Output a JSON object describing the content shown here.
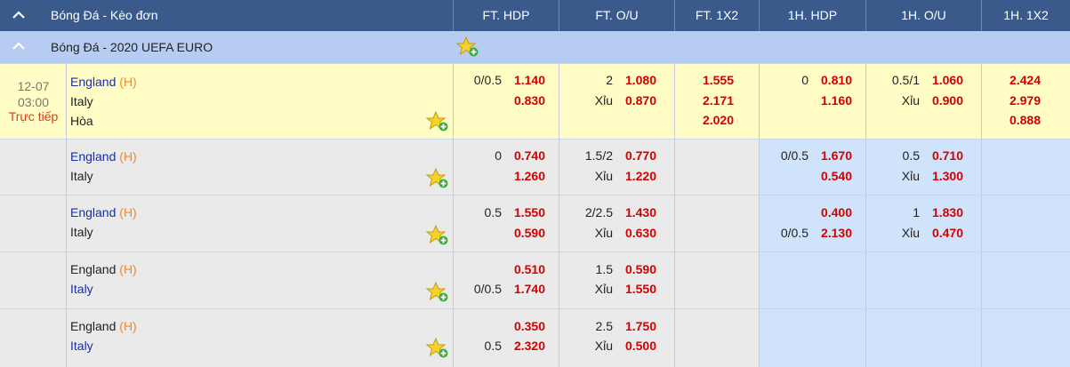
{
  "header": {
    "title": "Bóng Đá - Kèo đơn",
    "columns": [
      "FT. HDP",
      "FT. O/U",
      "FT. 1X2",
      "1H. HDP",
      "1H. O/U",
      "1H. 1X2"
    ]
  },
  "league": {
    "name": "Bóng Đá - 2020 UEFA EURO"
  },
  "match": {
    "date": "12-07",
    "time": "03:00",
    "status": "Trực tiếp"
  },
  "rows": [
    {
      "home": "England",
      "home_tag": "(H)",
      "away": "Italy",
      "draw": "Hòa",
      "ft_hdp": {
        "line_home": "0/0.5",
        "home": "1.140",
        "line_away": "",
        "away": "0.830"
      },
      "ft_ou": {
        "line": "2",
        "over": "1.080",
        "under_label": "Xỉu",
        "under": "0.870"
      },
      "ft_1x2": [
        "1.555",
        "2.171",
        "2.020"
      ],
      "h1_hdp": {
        "line_home": "0",
        "home": "0.810",
        "line_away": "",
        "away": "1.160"
      },
      "h1_ou": {
        "line": "0.5/1",
        "over": "1.060",
        "under_label": "Xỉu",
        "under": "0.900"
      },
      "h1_1x2": [
        "2.424",
        "2.979",
        "0.888"
      ]
    },
    {
      "home": "England",
      "home_tag": "(H)",
      "away": "Italy",
      "ft_hdp": {
        "line_home": "0",
        "home": "0.740",
        "line_away": "",
        "away": "1.260"
      },
      "ft_ou": {
        "line": "1.5/2",
        "over": "0.770",
        "under_label": "Xỉu",
        "under": "1.220"
      },
      "h1_hdp": {
        "line_home": "0/0.5",
        "home": "1.670",
        "line_away": "",
        "away": "0.540"
      },
      "h1_ou": {
        "line": "0.5",
        "over": "0.710",
        "under_label": "Xỉu",
        "under": "1.300"
      }
    },
    {
      "home": "England",
      "home_tag": "(H)",
      "away": "Italy",
      "ft_hdp": {
        "line_home": "0.5",
        "home": "1.550",
        "line_away": "",
        "away": "0.590"
      },
      "ft_ou": {
        "line": "2/2.5",
        "over": "1.430",
        "under_label": "Xỉu",
        "under": "0.630"
      },
      "h1_hdp": {
        "line_home": "",
        "home": "0.400",
        "line_away": "0/0.5",
        "away": "2.130"
      },
      "h1_ou": {
        "line": "1",
        "over": "1.830",
        "under_label": "Xỉu",
        "under": "0.470"
      }
    },
    {
      "home": "England",
      "home_tag": "(H)",
      "away": "Italy",
      "ft_hdp": {
        "line_home": "",
        "home": "0.510",
        "line_away": "0/0.5",
        "away": "1.740"
      },
      "ft_ou": {
        "line": "1.5",
        "over": "0.590",
        "under_label": "Xỉu",
        "under": "1.550"
      }
    },
    {
      "home": "England",
      "home_tag": "(H)",
      "away": "Italy",
      "ft_hdp": {
        "line_home": "",
        "home": "0.350",
        "line_away": "0.5",
        "away": "2.320"
      },
      "ft_ou": {
        "line": "2.5",
        "over": "1.750",
        "under_label": "Xỉu",
        "under": "0.500"
      }
    }
  ]
}
